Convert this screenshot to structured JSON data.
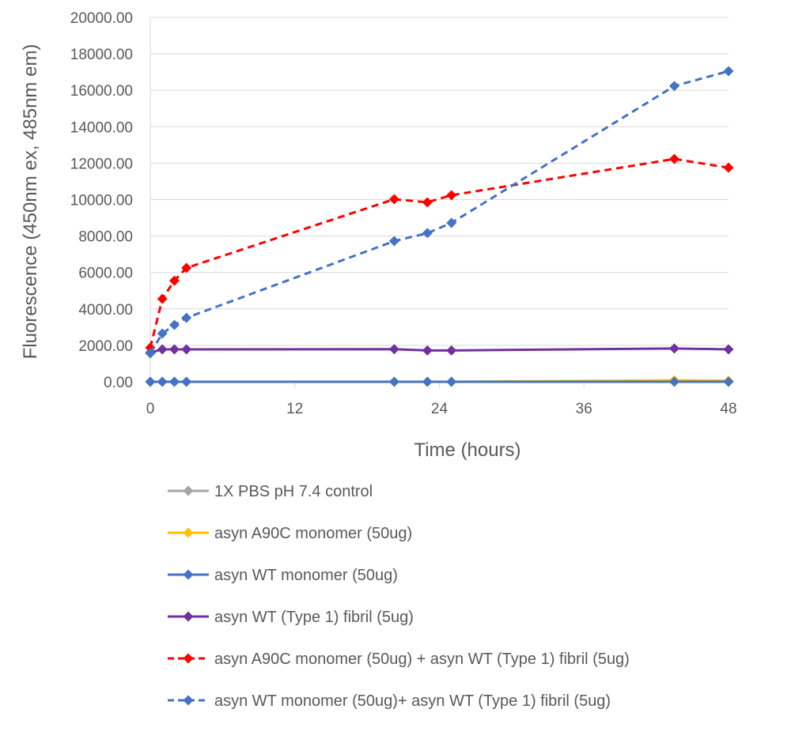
{
  "chart_data": {
    "type": "line",
    "title": "",
    "xlabel": "Time (hours)",
    "ylabel": "Fluorescence (450nm ex, 485nm em)",
    "xlim": [
      0,
      48
    ],
    "ylim": [
      0,
      20000
    ],
    "x_ticks": [
      "0",
      "12",
      "24",
      "36",
      "48"
    ],
    "y_ticks": [
      "0.00",
      "2000.00",
      "4000.00",
      "6000.00",
      "8000.00",
      "10000.00",
      "12000.00",
      "14000.00",
      "16000.00",
      "18000.00",
      "20000.00"
    ],
    "grid": true,
    "legend_placement": "bottom",
    "x": [
      0,
      1,
      2,
      3,
      20.25,
      23,
      25,
      43.5,
      48
    ],
    "series": [
      {
        "name": "1X PBS pH 7.4 control",
        "color": "#A5A5A5",
        "dashed": false,
        "values": [
          0,
          0,
          0,
          0,
          0,
          0,
          0,
          50,
          40
        ]
      },
      {
        "name": "asyn A90C monomer (50ug)",
        "color": "#FFC000",
        "dashed": false,
        "values": [
          0,
          0,
          0,
          0,
          0,
          0,
          0,
          80,
          60
        ]
      },
      {
        "name": "asyn WT monomer (50ug)",
        "color": "#4472C4",
        "dashed": false,
        "values": [
          0,
          0,
          0,
          0,
          0,
          0,
          0,
          0,
          0
        ]
      },
      {
        "name": "asyn WT (Type 1) fibril (5ug)",
        "color": "#7030A0",
        "dashed": false,
        "values": [
          1600,
          1780,
          1780,
          1780,
          1790,
          1720,
          1720,
          1830,
          1780
        ]
      },
      {
        "name": "asyn A90C monomer (50ug) + asyn WT (Type 1) fibril (5ug)",
        "color": "#FF0000",
        "dashed": true,
        "values": [
          1870,
          4550,
          5550,
          6250,
          10020,
          9850,
          10240,
          12230,
          11750
        ]
      },
      {
        "name": "asyn WT monomer (50ug)+ asyn WT (Type 1) fibril (5ug)",
        "color": "#4472C4",
        "dashed": true,
        "values": [
          1560,
          2650,
          3120,
          3510,
          7720,
          8160,
          8720,
          16230,
          17050
        ]
      }
    ]
  }
}
